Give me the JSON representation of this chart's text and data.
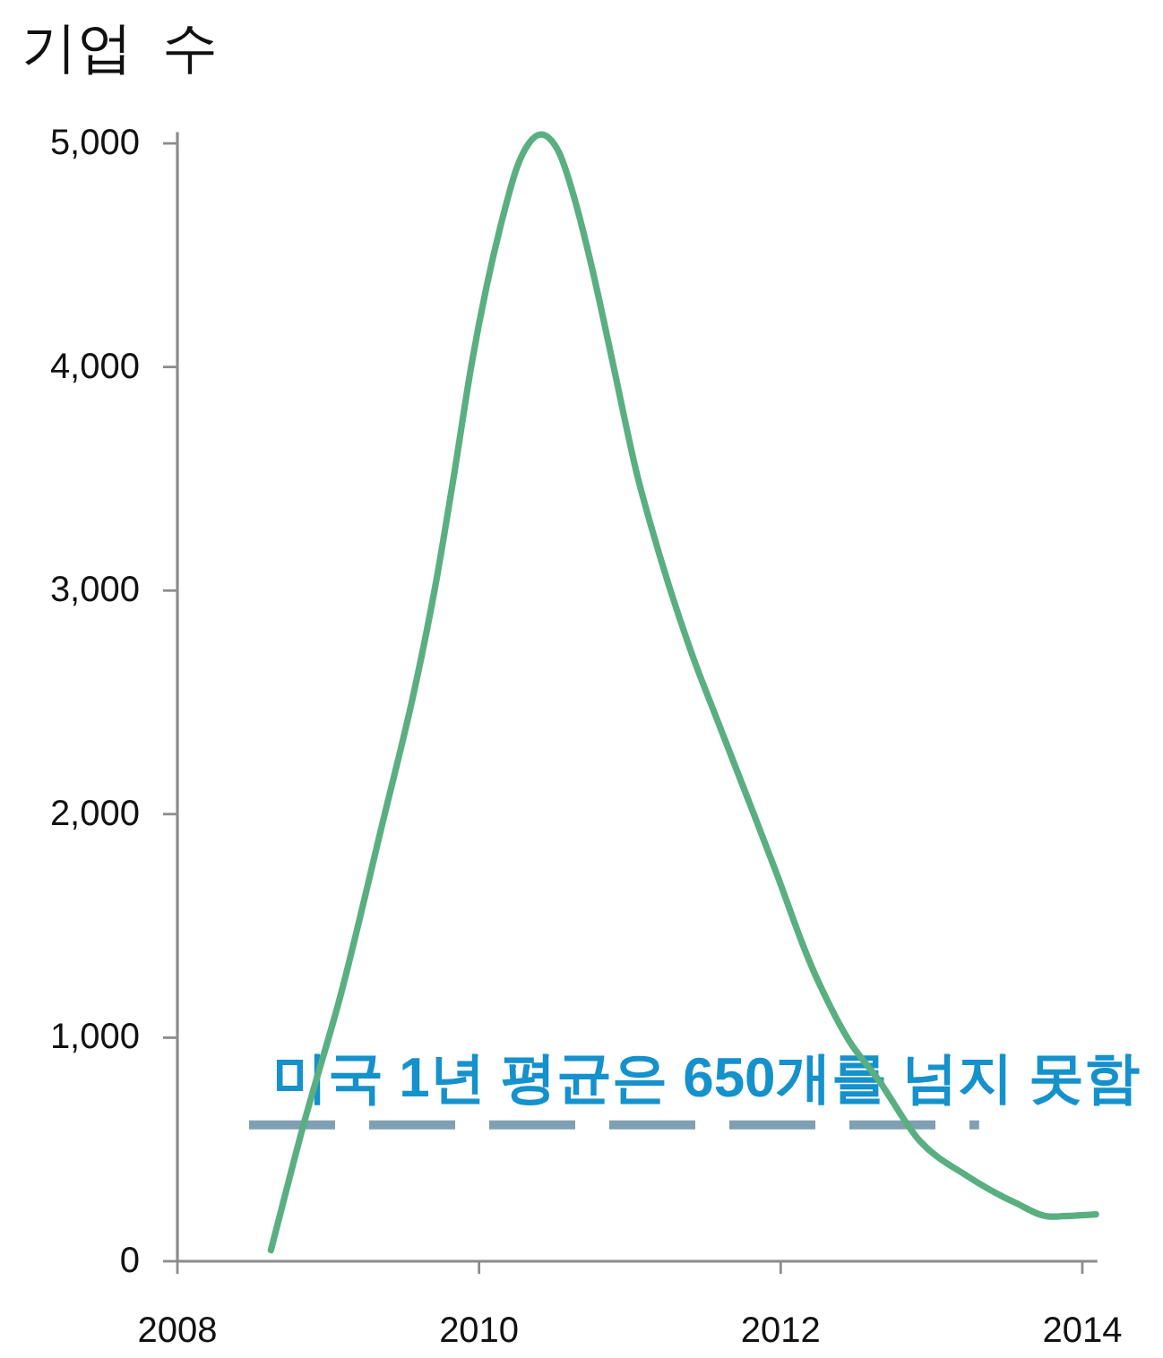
{
  "chart_data": {
    "type": "line",
    "ylabel": "기업 수",
    "x": [
      2008.62,
      2008.84,
      2009.09,
      2009.36,
      2009.56,
      2009.71,
      2009.83,
      2009.95,
      2010.05,
      2010.15,
      2010.25,
      2010.33,
      2010.41,
      2010.53,
      2010.63,
      2010.75,
      2010.88,
      2011.04,
      2011.14,
      2011.26,
      2011.42,
      2011.58,
      2011.77,
      2011.97,
      2012.15,
      2012.25,
      2012.45,
      2012.65,
      2012.92,
      2013.24,
      2013.56,
      2013.79,
      2014.09
    ],
    "series": [
      {
        "color": "#5aaf80",
        "values": [
          50,
          620,
          1210,
          1960,
          2520,
          3020,
          3500,
          4010,
          4360,
          4650,
          4890,
          5000,
          5040,
          4960,
          4760,
          4440,
          4040,
          3540,
          3290,
          3020,
          2700,
          2420,
          2090,
          1740,
          1410,
          1250,
          990,
          810,
          540,
          380,
          260,
          200,
          210
        ]
      }
    ],
    "xlim": [
      2008,
      2014.1
    ],
    "xticks": [
      2008,
      2010,
      2012,
      2014
    ],
    "ylim": [
      0,
      5050
    ],
    "yticks": [
      0,
      {
        "value": 1000,
        "label": "1,000"
      },
      {
        "value": 2000,
        "label": "2,000"
      },
      {
        "value": 3000,
        "label": "3,000"
      },
      {
        "value": 4000,
        "label": "4,000"
      },
      {
        "value": 5000,
        "label": "5,000"
      }
    ],
    "ref_lines": [
      {
        "axis": "y",
        "value": 610,
        "label": "미국 1년 평균은 650개를 넘지 못함",
        "color": "#7f9fb3",
        "line_style": "dashed"
      }
    ]
  }
}
